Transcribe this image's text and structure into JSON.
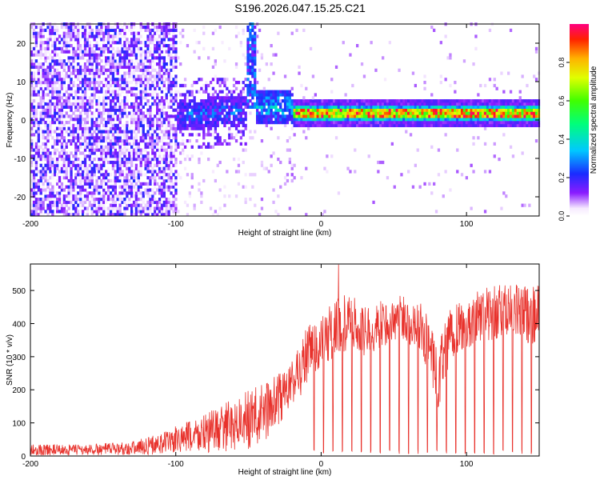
{
  "title": "S196.2026.047.15.25.C21",
  "chart_data": [
    {
      "type": "heatmap",
      "title": "S196.2026.047.15.25.C21",
      "xlabel": "Height of straight line (km)",
      "ylabel": "Frequency (Hz)",
      "xlim": [
        -200,
        150
      ],
      "ylim": [
        -25,
        25
      ],
      "xticks": [
        -200,
        -100,
        0,
        100
      ],
      "yticks": [
        -20,
        -10,
        0,
        10,
        20
      ],
      "colorbar": {
        "label": "Normalized spectral amplitude",
        "range": [
          0.0,
          1.0
        ],
        "ticks": [
          0.0,
          0.2,
          0.4,
          0.6,
          0.8
        ]
      },
      "ridge": {
        "description": "narrow high-amplitude band near 0-3 Hz from about -45 km to 150 km",
        "x_start": -45,
        "x_end": 150,
        "freq_center": 1.5,
        "peak_amplitude": 1.0
      },
      "gap_segment": {
        "x_start": -52,
        "x_end": -46,
        "freq_range": [
          3,
          25
        ]
      },
      "noise_region": {
        "x_start": -200,
        "x_end": -100,
        "amplitude_max": 0.2
      }
    },
    {
      "type": "line",
      "xlabel": "Height of straight line (km)",
      "ylabel": "SNR (10 * v/v)",
      "xlim": [
        -200,
        150
      ],
      "ylim": [
        0,
        580
      ],
      "xticks": [
        -200,
        -100,
        0,
        100
      ],
      "yticks": [
        0,
        100,
        200,
        300,
        400,
        500
      ],
      "series": [
        {
          "name": "SNR",
          "color": "#e8312b",
          "envelope_x": [
            -200,
            -160,
            -130,
            -110,
            -90,
            -70,
            -50,
            -40,
            -30,
            -20,
            -10,
            0,
            10,
            20,
            30,
            40,
            50,
            60,
            70,
            80,
            90,
            100,
            110,
            120,
            130,
            140,
            150
          ],
          "envelope_max": [
            35,
            35,
            45,
            70,
            110,
            150,
            200,
            220,
            250,
            290,
            400,
            420,
            480,
            490,
            450,
            470,
            500,
            480,
            460,
            330,
            480,
            460,
            510,
            520,
            520,
            520,
            520
          ],
          "envelope_min": [
            2,
            2,
            3,
            5,
            5,
            10,
            20,
            40,
            80,
            150,
            200,
            260,
            300,
            320,
            300,
            320,
            340,
            340,
            300,
            120,
            280,
            320,
            350,
            350,
            360,
            340,
            340
          ],
          "peak": {
            "x": 12,
            "y": 578
          }
        }
      ]
    }
  ]
}
